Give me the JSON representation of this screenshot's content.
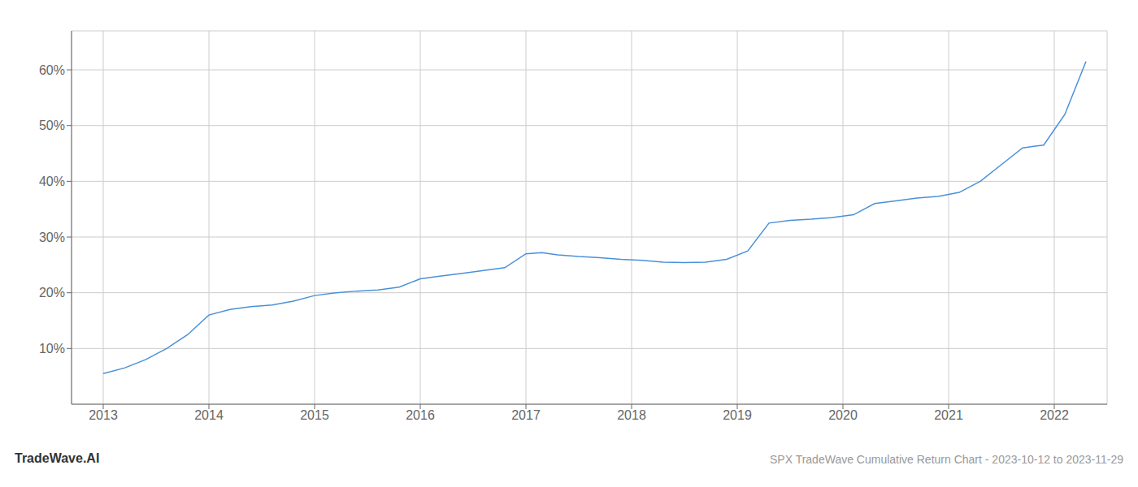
{
  "chart_data": {
    "type": "line",
    "title": "SPX TradeWave Cumulative Return Chart - 2023-10-12 to 2023-11-29",
    "annotations": [
      "TradeWave.AI"
    ],
    "x": [
      2013.0,
      2013.2,
      2013.4,
      2013.6,
      2013.8,
      2014.0,
      2014.2,
      2014.4,
      2014.6,
      2014.8,
      2015.0,
      2015.2,
      2015.4,
      2015.6,
      2015.8,
      2016.0,
      2016.2,
      2016.4,
      2016.6,
      2016.8,
      2017.0,
      2017.15,
      2017.3,
      2017.5,
      2017.7,
      2017.9,
      2018.1,
      2018.3,
      2018.5,
      2018.7,
      2018.9,
      2019.1,
      2019.3,
      2019.5,
      2019.7,
      2019.9,
      2020.1,
      2020.3,
      2020.5,
      2020.7,
      2020.9,
      2021.1,
      2021.3,
      2021.5,
      2021.7,
      2021.9,
      2022.1,
      2022.3
    ],
    "values": [
      5.5,
      6.5,
      8.0,
      10.0,
      12.5,
      16.0,
      17.0,
      17.5,
      17.8,
      18.5,
      19.5,
      20.0,
      20.3,
      20.5,
      21.0,
      22.5,
      23.0,
      23.5,
      24.0,
      24.5,
      27.0,
      27.2,
      26.8,
      26.5,
      26.3,
      26.0,
      25.8,
      25.5,
      25.4,
      25.5,
      26.0,
      27.5,
      32.5,
      33.0,
      33.2,
      33.5,
      34.0,
      36.0,
      36.5,
      37.0,
      37.3,
      38.0,
      40.0,
      43.0,
      46.0,
      46.5,
      52.0,
      61.5
    ],
    "color": "#4a90d9",
    "xlim": [
      2012.7,
      2022.5
    ],
    "ylim": [
      0,
      67
    ],
    "xticks": [
      2013,
      2014,
      2015,
      2016,
      2017,
      2018,
      2019,
      2020,
      2021,
      2022
    ],
    "yticks": [
      {
        "value": 10,
        "label": "10%"
      },
      {
        "value": 20,
        "label": "20%"
      },
      {
        "value": 30,
        "label": "30%"
      },
      {
        "value": 40,
        "label": "40%"
      },
      {
        "value": 50,
        "label": "50%"
      },
      {
        "value": 60,
        "label": "60%"
      }
    ],
    "grid": true
  }
}
